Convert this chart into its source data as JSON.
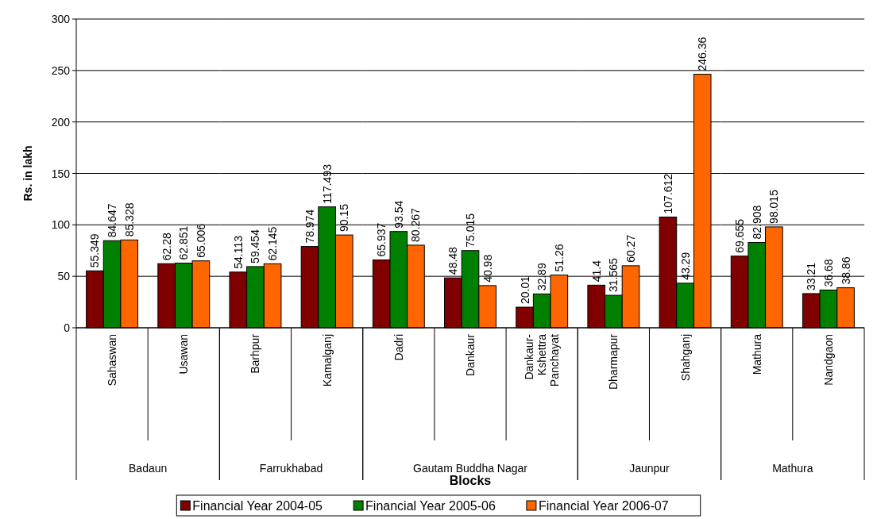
{
  "chart_data": [
    {
      "type": "bar",
      "xlabel": "Badaun",
      "ylabel": "Rs. in lakh",
      "categories": [
        "Sahaswan",
        "Usawan"
      ],
      "series": [
        {
          "name": "Financial Year 2004-05",
          "color": "#800000",
          "values": [
            55.349,
            62.28
          ]
        },
        {
          "name": "Financial Year 2005-06",
          "color": "#008000",
          "values": [
            84.647,
            62.851
          ]
        },
        {
          "name": "Financial Year 2006-07",
          "color": "#ff6600",
          "values": [
            85.328,
            65.006
          ]
        }
      ],
      "ylim": [
        0,
        300
      ],
      "yticks": [
        0,
        50,
        100,
        150,
        200,
        250,
        300
      ],
      "grid": "y",
      "legend": "bottom",
      "data_labels": true,
      "annotations": [
        "Blocks"
      ]
    },
    {
      "type": "bar",
      "xlabel": "Farrukhabad",
      "categories": [
        "Barhpur",
        "Kamalganj"
      ],
      "series": [
        {
          "color": "#800000",
          "values": [
            54.113,
            78.974
          ]
        },
        {
          "color": "#008000",
          "values": [
            59.454,
            117.493
          ]
        },
        {
          "color": "#ff6600",
          "values": [
            62.145,
            90.15
          ]
        }
      ],
      "ylim": [
        0,
        300
      ],
      "yticks": [
        0,
        50,
        100,
        150,
        200,
        250,
        300
      ],
      "grid": "y",
      "data_labels": true,
      "tick_labels": "x"
    },
    {
      "type": "bar",
      "xlabel": "Gautam Buddha Nagar",
      "categories": [
        "Dadri",
        "Dankaur",
        "Dankaur-Kshettra Panchayat"
      ],
      "series": [
        {
          "color": "#800000",
          "values": [
            65.937,
            48.48,
            20.01
          ]
        },
        {
          "color": "#008000",
          "values": [
            93.54,
            75.015,
            32.89
          ]
        },
        {
          "color": "#ff6600",
          "values": [
            80.267,
            40.98,
            51.26
          ]
        }
      ],
      "ylim": [
        0,
        300
      ],
      "yticks": [
        0,
        50,
        100,
        150,
        200,
        250,
        300
      ],
      "grid": "y",
      "data_labels": true,
      "tick_labels": "x"
    },
    {
      "type": "bar",
      "xlabel": "Jaunpur",
      "categories": [
        "Dharmapur",
        "Shahganj"
      ],
      "series": [
        {
          "color": "#800000",
          "values": [
            41.4,
            107.612
          ]
        },
        {
          "color": "#008000",
          "values": [
            31.565,
            43.29
          ]
        },
        {
          "color": "#ff6600",
          "values": [
            60.27,
            246.36
          ]
        }
      ],
      "ylim": [
        0,
        300
      ],
      "yticks": [
        0,
        50,
        100,
        150,
        200,
        250,
        300
      ],
      "grid": "y",
      "data_labels": true,
      "tick_labels": "x"
    },
    {
      "type": "bar",
      "xlabel": "Mathura",
      "categories": [
        "Mathura",
        "Nandgaon"
      ],
      "series": [
        {
          "color": "#800000",
          "values": [
            69.655,
            33.21
          ]
        },
        {
          "color": "#008000",
          "values": [
            82.908,
            36.68
          ]
        },
        {
          "color": "#ff6600",
          "values": [
            98.015,
            38.86
          ]
        }
      ],
      "ylim": [
        0,
        300
      ],
      "yticks": [
        0,
        50,
        100,
        150,
        200,
        250,
        300
      ],
      "grid": "y",
      "data_labels": true,
      "tick_labels": "x"
    }
  ]
}
